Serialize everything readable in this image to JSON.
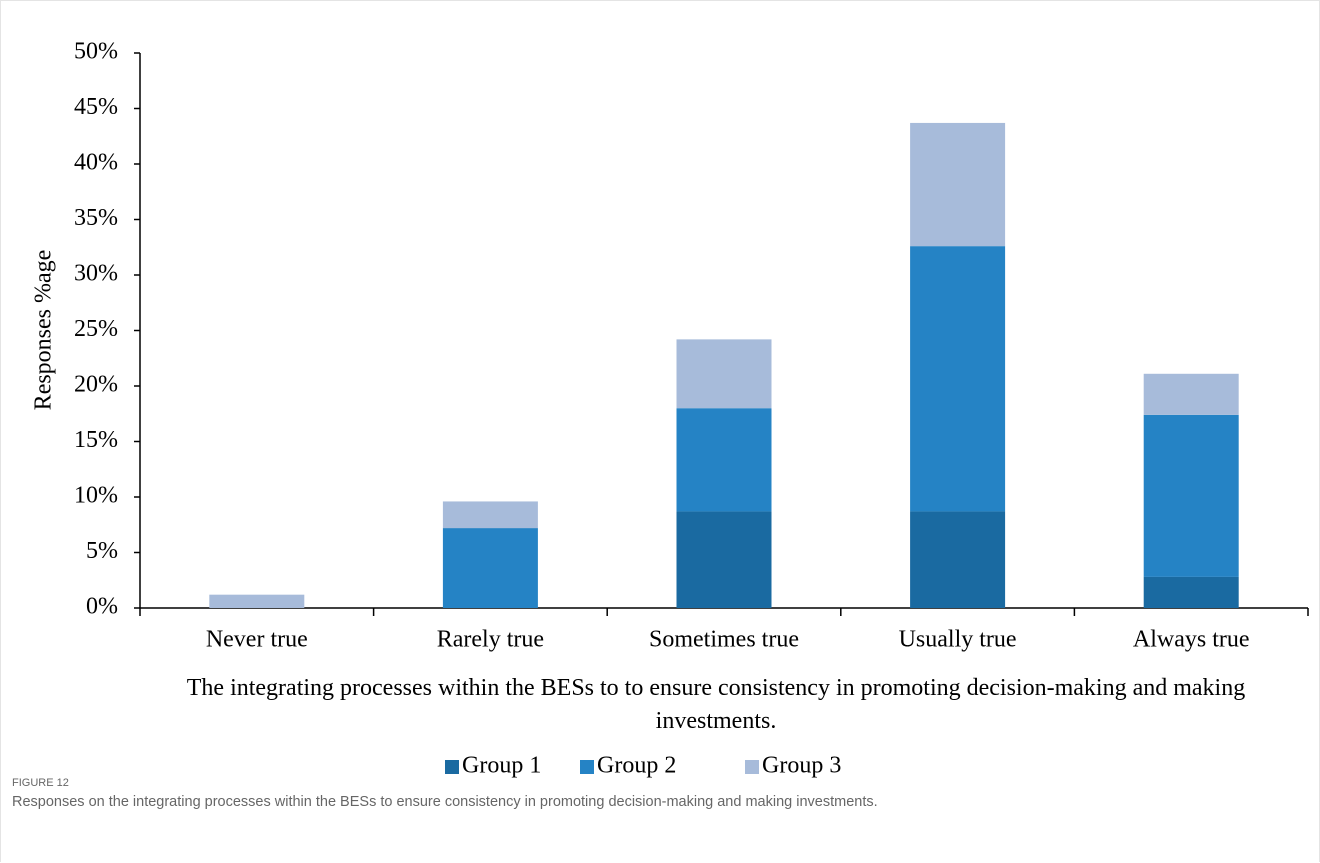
{
  "figure_label": "FIGURE 12",
  "caption": "Responses on the integrating processes within the BESs to ensure consistency in promoting decision-making and making investments.",
  "chart_data": {
    "type": "stacked_bar",
    "x_label": "The integrating processes within the BESs to to ensure consistency in promoting decision-making and making investments.",
    "y_label": "Responses %age",
    "categories": [
      "Never true",
      "Rarely true",
      "Sometimes true",
      "Usually true",
      "Always true"
    ],
    "series": [
      {
        "name": "Group 1",
        "color": "#1a6aa1",
        "values": [
          0,
          0,
          8.7,
          8.7,
          2.8
        ]
      },
      {
        "name": "Group 2",
        "color": "#2583c5",
        "values": [
          0,
          7.2,
          9.3,
          23.9,
          14.6
        ]
      },
      {
        "name": "Group 3",
        "color": "#a7bbda",
        "values": [
          1.2,
          2.4,
          6.2,
          11.1,
          3.7
        ]
      }
    ],
    "ylim": [
      0,
      50
    ],
    "yticks": [
      {
        "value": 0,
        "label": "0%"
      },
      {
        "value": 5,
        "label": "5%"
      },
      {
        "value": 10,
        "label": "10%"
      },
      {
        "value": 15,
        "label": "15%"
      },
      {
        "value": 20,
        "label": "20%"
      },
      {
        "value": 25,
        "label": "25%"
      },
      {
        "value": 30,
        "label": "30%"
      },
      {
        "value": 35,
        "label": "35%"
      },
      {
        "value": 40,
        "label": "40%"
      },
      {
        "value": 45,
        "label": "45%"
      },
      {
        "value": 50,
        "label": "50%"
      }
    ],
    "grid": false,
    "legend": "bottom"
  }
}
